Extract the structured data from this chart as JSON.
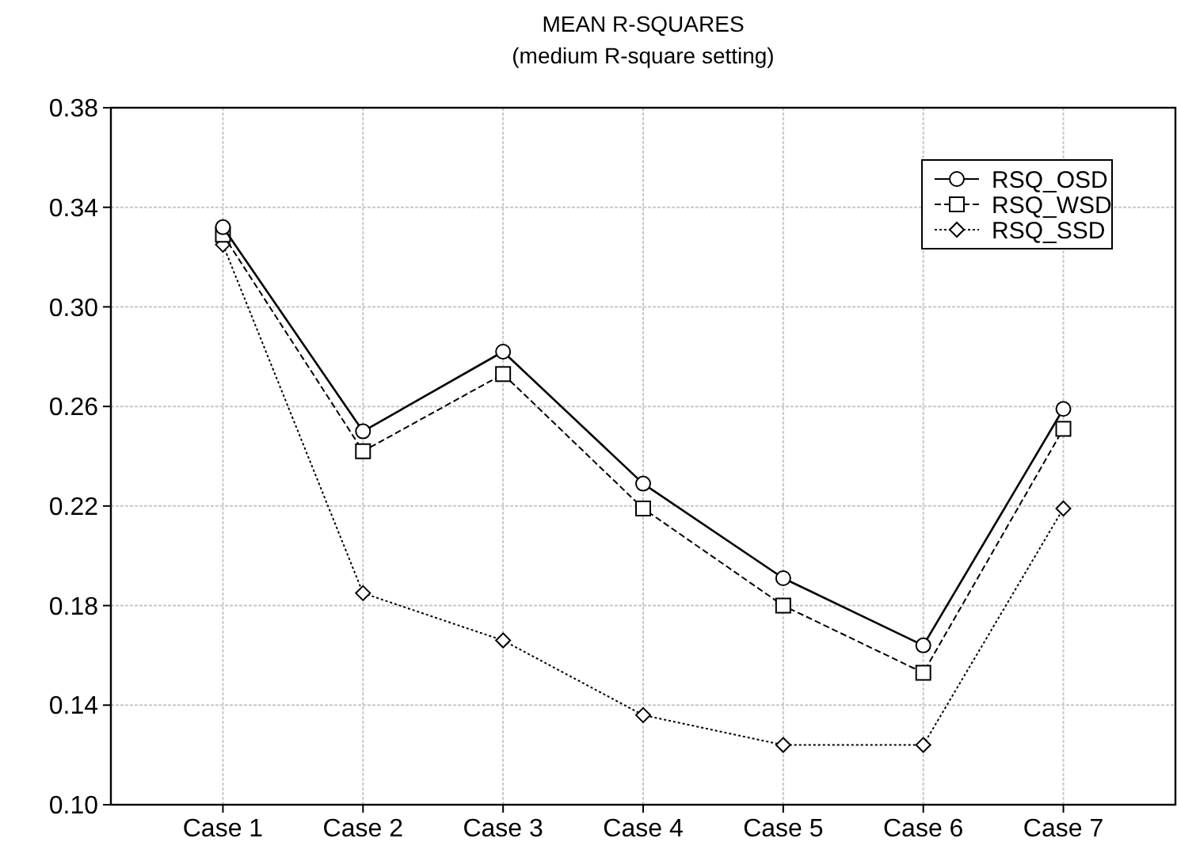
{
  "chart_data": {
    "type": "line",
    "title": "MEAN R-SQUARES",
    "subtitle": "(medium R-square setting)",
    "categories": [
      "Case 1",
      "Case 2",
      "Case 3",
      "Case 4",
      "Case 5",
      "Case 6",
      "Case 7"
    ],
    "series": [
      {
        "name": "RSQ_OSD",
        "color": "#000000",
        "marker": "circle",
        "line_style": "solid",
        "values": [
          0.332,
          0.25,
          0.282,
          0.229,
          0.191,
          0.164,
          0.259
        ]
      },
      {
        "name": "RSQ_WSD",
        "color": "#000000",
        "marker": "square",
        "line_style": "dashed",
        "values": [
          0.329,
          0.242,
          0.273,
          0.219,
          0.18,
          0.153,
          0.251
        ]
      },
      {
        "name": "RSQ_SSD",
        "color": "#000000",
        "marker": "diamond",
        "line_style": "dotted",
        "values": [
          0.325,
          0.185,
          0.166,
          0.136,
          0.124,
          0.124,
          0.219
        ]
      }
    ],
    "ylim": [
      0.1,
      0.38
    ],
    "yticks": [
      {
        "value": 0.1,
        "label": "0.10"
      },
      {
        "value": 0.14,
        "label": "0.14"
      },
      {
        "value": 0.18,
        "label": "0.18"
      },
      {
        "value": 0.22,
        "label": "0.22"
      },
      {
        "value": 0.26,
        "label": "0.26"
      },
      {
        "value": 0.3,
        "label": "0.30"
      },
      {
        "value": 0.34,
        "label": "0.34"
      },
      {
        "value": 0.38,
        "label": "0.38"
      }
    ],
    "grid": true,
    "legend": "top right"
  }
}
